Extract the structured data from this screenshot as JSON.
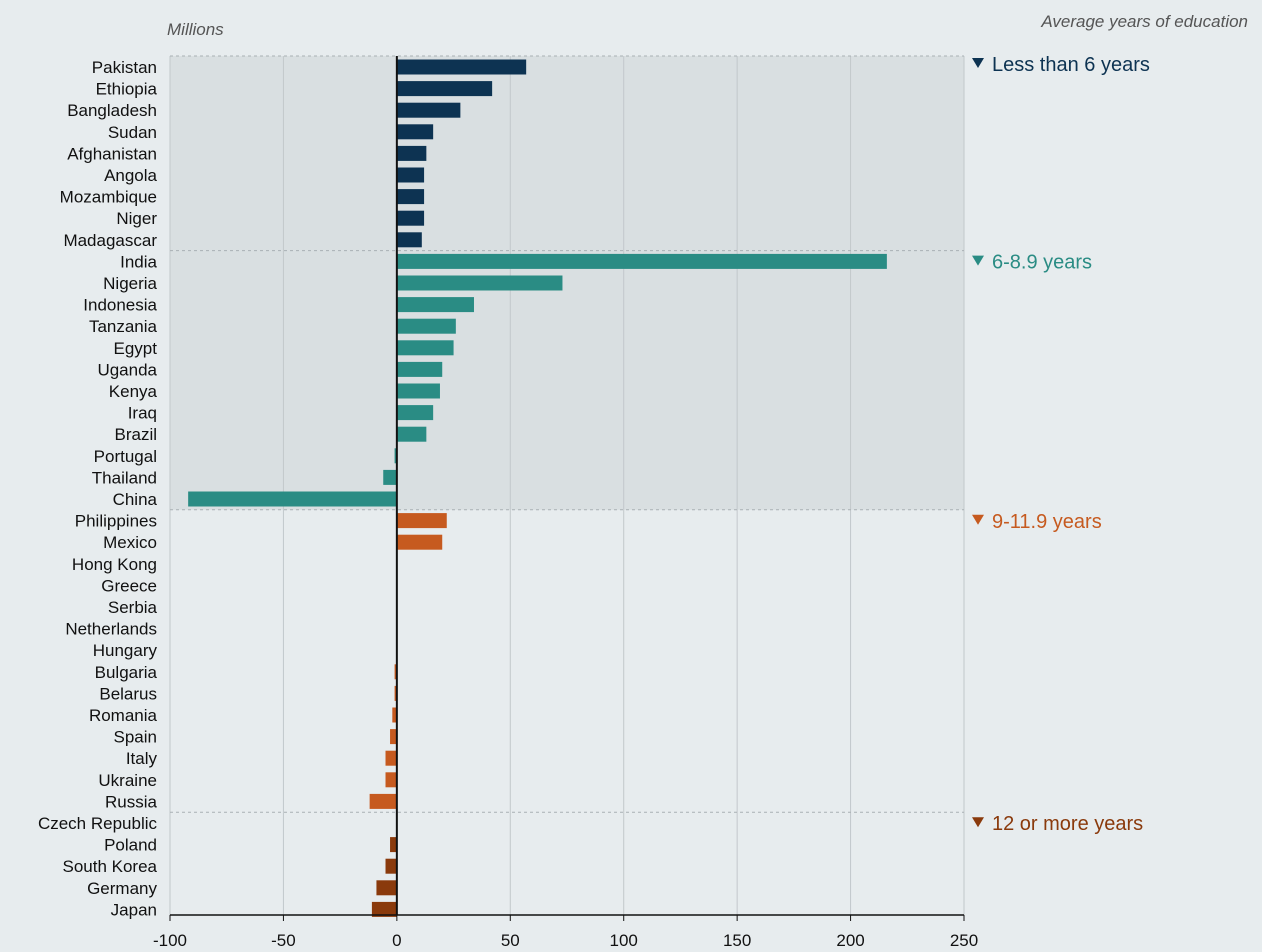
{
  "chart_data": {
    "type": "bar",
    "orientation": "horizontal",
    "unit_label": "Millions",
    "legend_title": "Average years of education",
    "xlim": [
      -100,
      250
    ],
    "xticks": [
      -100,
      -50,
      0,
      50,
      100,
      150,
      200,
      250
    ],
    "grid": true,
    "groups": [
      {
        "label": "Less than 6 years",
        "color": "#0d3352",
        "shaded": true,
        "categories": [
          "Pakistan",
          "Ethiopia",
          "Bangladesh",
          "Sudan",
          "Afghanistan",
          "Angola",
          "Mozambique",
          "Niger",
          "Madagascar"
        ],
        "values": [
          57,
          42,
          28,
          16,
          13,
          12,
          12,
          12,
          11
        ]
      },
      {
        "label": "6-8.9 years",
        "color": "#2a8c84",
        "shaded": true,
        "categories": [
          "India",
          "Nigeria",
          "Indonesia",
          "Tanzania",
          "Egypt",
          "Uganda",
          "Kenya",
          "Iraq",
          "Brazil",
          "Portugal",
          "Thailand",
          "China"
        ],
        "values": [
          216,
          73,
          34,
          26,
          25,
          20,
          19,
          16,
          13,
          -1,
          -6,
          -92
        ]
      },
      {
        "label": "9-11.9 years",
        "color": "#c65a1f",
        "shaded": false,
        "categories": [
          "Philippines",
          "Mexico",
          "Hong Kong",
          "Greece",
          "Serbia",
          "Netherlands",
          "Hungary",
          "Bulgaria",
          "Belarus",
          "Romania",
          "Spain",
          "Italy",
          "Ukraine",
          "Russia"
        ],
        "values": [
          22,
          20,
          0,
          0,
          0,
          0,
          0,
          -1,
          -1,
          -2,
          -3,
          -5,
          -5,
          -12
        ]
      },
      {
        "label": "12 or more years",
        "color": "#8a3a0c",
        "shaded": false,
        "categories": [
          "Czech Republic",
          "Poland",
          "South Korea",
          "Germany",
          "Japan"
        ],
        "values": [
          0,
          -3,
          -5,
          -9,
          -11
        ]
      }
    ]
  }
}
